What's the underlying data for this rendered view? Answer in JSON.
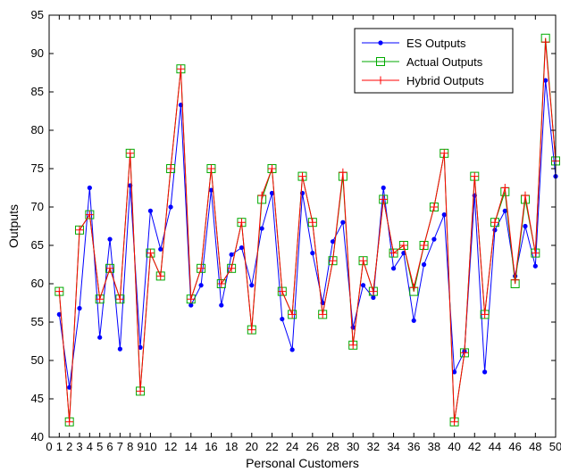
{
  "chart_data": {
    "type": "line",
    "xlabel": "Personal Customers",
    "ylabel": "Outputs",
    "xlim": [
      0,
      50
    ],
    "ylim": [
      40,
      95
    ],
    "xticks": [
      "0",
      "1",
      "2",
      "3",
      "4",
      "5",
      "6",
      "7",
      "8",
      "9",
      "10",
      "12",
      "14",
      "16",
      "18",
      "20",
      "22",
      "24",
      "26",
      "28",
      "30",
      "32",
      "34",
      "36",
      "38",
      "40",
      "42",
      "44",
      "46",
      "48",
      "50"
    ],
    "xtick_values": [
      0,
      1,
      2,
      3,
      4,
      5,
      6,
      7,
      8,
      9,
      10,
      12,
      14,
      16,
      18,
      20,
      22,
      24,
      26,
      28,
      30,
      32,
      34,
      36,
      38,
      40,
      42,
      44,
      46,
      48,
      50
    ],
    "yticks": [
      "40",
      "45",
      "50",
      "55",
      "60",
      "65",
      "70",
      "75",
      "80",
      "85",
      "90",
      "95"
    ],
    "ytick_values": [
      40,
      45,
      50,
      55,
      60,
      65,
      70,
      75,
      80,
      85,
      90,
      95
    ],
    "grid": false,
    "legend_position": "top-right",
    "x": [
      1,
      2,
      3,
      4,
      5,
      6,
      7,
      8,
      9,
      10,
      11,
      12,
      13,
      14,
      15,
      16,
      17,
      18,
      19,
      20,
      21,
      22,
      23,
      24,
      25,
      26,
      27,
      28,
      29,
      30,
      31,
      32,
      33,
      34,
      35,
      36,
      37,
      38,
      39,
      40,
      41,
      42,
      43,
      44,
      45,
      46,
      47,
      48,
      49,
      50
    ],
    "series": [
      {
        "name": "ES Outputs",
        "color": "#0000ff",
        "marker": "dot",
        "values": [
          56,
          46.5,
          56.8,
          72.5,
          53,
          65.8,
          51.5,
          72.8,
          51.7,
          69.5,
          64.5,
          70,
          83.3,
          57.2,
          59.8,
          72.2,
          57.2,
          63.8,
          64.7,
          59.8,
          67.2,
          71.8,
          55.4,
          51.4,
          71.8,
          64,
          57.5,
          65.5,
          68,
          54.3,
          59.8,
          58.2,
          72.5,
          62,
          64,
          55.2,
          62.5,
          65.8,
          69,
          48.5,
          51.2,
          71.5,
          48.5,
          67,
          69.5,
          61,
          67.5,
          62.3,
          86.5,
          74
        ]
      },
      {
        "name": "Actual Outputs",
        "color": "#00aa00",
        "marker": "square",
        "values": [
          59,
          42,
          67,
          69,
          58,
          62,
          58,
          77,
          46,
          64,
          61,
          75,
          88,
          58,
          62,
          75,
          60,
          62,
          68,
          54,
          71,
          75,
          59,
          56,
          74,
          68,
          56,
          63,
          74,
          52,
          63,
          59,
          71,
          64,
          65,
          59,
          65,
          70,
          77,
          42,
          51,
          74,
          56,
          68,
          72,
          60,
          71,
          64,
          92,
          76
        ]
      },
      {
        "name": "Hybrid Outputs",
        "color": "#ff0000",
        "marker": "plus",
        "values": [
          59,
          42,
          67,
          69,
          58,
          62,
          58,
          77,
          46,
          64,
          61,
          75,
          88,
          58,
          62,
          75,
          60,
          62,
          68,
          54,
          71.5,
          75,
          59,
          56,
          74,
          68,
          56,
          63,
          74.5,
          52,
          63,
          59,
          71,
          64,
          65,
          59.5,
          65,
          70,
          77,
          42,
          51,
          74,
          56,
          68,
          72.5,
          60.5,
          71.5,
          64,
          91.5,
          76
        ]
      }
    ]
  }
}
